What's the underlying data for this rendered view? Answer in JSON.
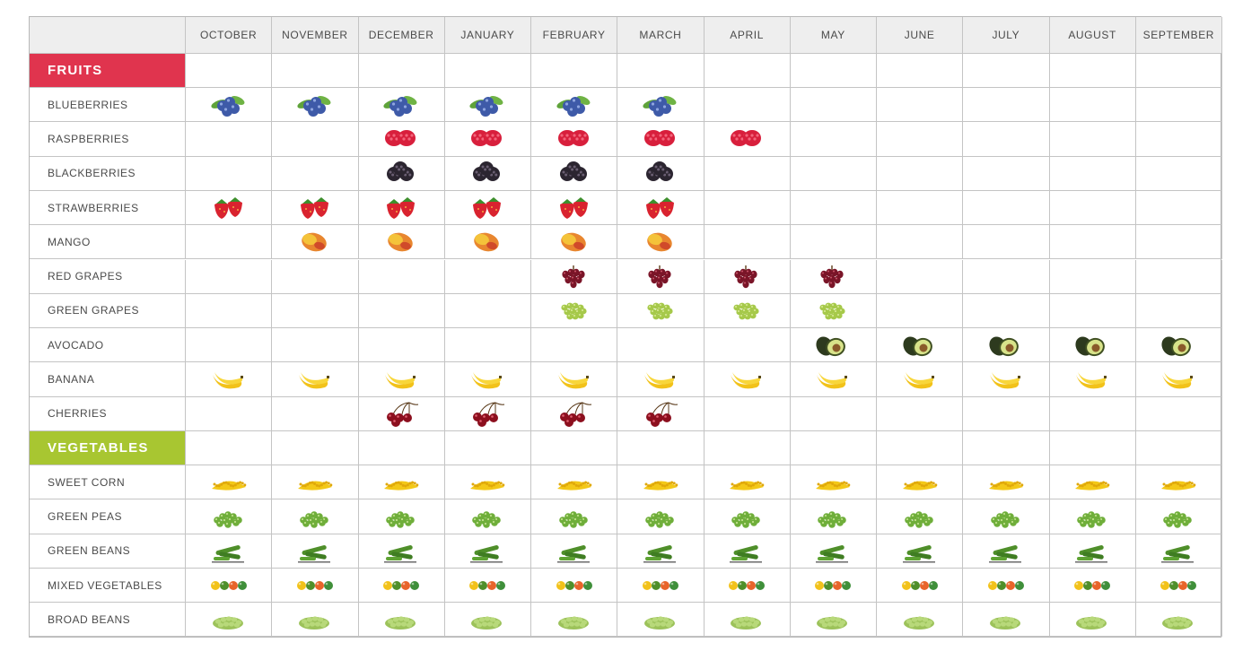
{
  "months": [
    "OCTOBER",
    "NOVEMBER",
    "DECEMBER",
    "JANUARY",
    "FEBRUARY",
    "MARCH",
    "APRIL",
    "MAY",
    "JUNE",
    "JULY",
    "AUGUST",
    "SEPTEMBER"
  ],
  "colors": {
    "fruits": "#e0344e",
    "vegetables": "#a8c631",
    "header_bg": "#eeeeee",
    "grid": "#c4c4c4"
  },
  "sections": [
    {
      "title": "FRUITS",
      "color": "#e0344e",
      "rows": [
        {
          "name": "BLUEBERRIES",
          "icon": "blueberries-icon",
          "months": [
            1,
            1,
            1,
            1,
            1,
            1,
            0,
            0,
            0,
            0,
            0,
            0
          ]
        },
        {
          "name": "RASPBERRIES",
          "icon": "raspberries-icon",
          "months": [
            0,
            0,
            1,
            1,
            1,
            1,
            1,
            0,
            0,
            0,
            0,
            0
          ]
        },
        {
          "name": "BLACKBERRIES",
          "icon": "blackberries-icon",
          "months": [
            0,
            0,
            1,
            1,
            1,
            1,
            0,
            0,
            0,
            0,
            0,
            0
          ]
        },
        {
          "name": "STRAWBERRIES",
          "icon": "strawberries-icon",
          "months": [
            1,
            1,
            1,
            1,
            1,
            1,
            0,
            0,
            0,
            0,
            0,
            0
          ]
        },
        {
          "name": "MANGO",
          "icon": "mango-icon",
          "months": [
            0,
            1,
            1,
            1,
            1,
            1,
            0,
            0,
            0,
            0,
            0,
            0
          ]
        },
        {
          "name": "RED GRAPES",
          "icon": "red-grapes-icon",
          "months": [
            0,
            0,
            0,
            0,
            1,
            1,
            1,
            1,
            0,
            0,
            0,
            0
          ]
        },
        {
          "name": "GREEN GRAPES",
          "icon": "green-grapes-icon",
          "months": [
            0,
            0,
            0,
            0,
            1,
            1,
            1,
            1,
            0,
            0,
            0,
            0
          ]
        },
        {
          "name": "AVOCADO",
          "icon": "avocado-icon",
          "months": [
            0,
            0,
            0,
            0,
            0,
            0,
            0,
            1,
            1,
            1,
            1,
            1
          ]
        },
        {
          "name": "BANANA",
          "icon": "banana-icon",
          "months": [
            1,
            1,
            1,
            1,
            1,
            1,
            1,
            1,
            1,
            1,
            1,
            1
          ]
        },
        {
          "name": "CHERRIES",
          "icon": "cherries-icon",
          "months": [
            0,
            0,
            1,
            1,
            1,
            1,
            0,
            0,
            0,
            0,
            0,
            0
          ]
        }
      ]
    },
    {
      "title": "VEGETABLES",
      "color": "#a8c631",
      "rows": [
        {
          "name": "SWEET CORN",
          "icon": "sweet-corn-icon",
          "months": [
            1,
            1,
            1,
            1,
            1,
            1,
            1,
            1,
            1,
            1,
            1,
            1
          ]
        },
        {
          "name": "GREEN PEAS",
          "icon": "green-peas-icon",
          "months": [
            1,
            1,
            1,
            1,
            1,
            1,
            1,
            1,
            1,
            1,
            1,
            1
          ]
        },
        {
          "name": "GREEN BEANS",
          "icon": "green-beans-icon",
          "months": [
            1,
            1,
            1,
            1,
            1,
            1,
            1,
            1,
            1,
            1,
            1,
            1
          ]
        },
        {
          "name": "MIXED VEGETABLES",
          "icon": "mixed-vegetables-icon",
          "months": [
            1,
            1,
            1,
            1,
            1,
            1,
            1,
            1,
            1,
            1,
            1,
            1
          ]
        },
        {
          "name": "BROAD BEANS",
          "icon": "broad-beans-icon",
          "months": [
            1,
            1,
            1,
            1,
            1,
            1,
            1,
            1,
            1,
            1,
            1,
            1
          ]
        }
      ]
    }
  ]
}
